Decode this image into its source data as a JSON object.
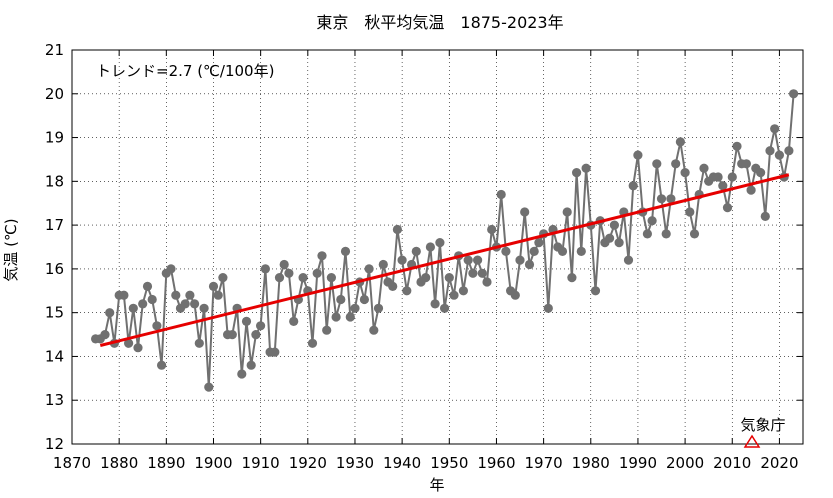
{
  "chart_data": {
    "type": "line",
    "title": "東京　秋平均気温　1875-2023年",
    "xlabel": "年",
    "ylabel": "気温 (℃)",
    "xlim": [
      1870,
      2025
    ],
    "ylim": [
      12,
      21
    ],
    "x_ticks": [
      1870,
      1880,
      1890,
      1900,
      1910,
      1920,
      1930,
      1940,
      1950,
      1960,
      1970,
      1980,
      1990,
      2000,
      2010,
      2020
    ],
    "y_ticks": [
      12,
      13,
      14,
      15,
      16,
      17,
      18,
      19,
      20,
      21
    ],
    "grid": true,
    "annotation": "トレンド=2.7 (℃/100年)",
    "source_label": "気象庁",
    "series": [
      {
        "color": "#707070",
        "x": [
          1875,
          1876,
          1877,
          1878,
          1879,
          1880,
          1881,
          1882,
          1883,
          1884,
          1885,
          1886,
          1887,
          1888,
          1889,
          1890,
          1891,
          1892,
          1893,
          1894,
          1895,
          1896,
          1897,
          1898,
          1899,
          1900,
          1901,
          1902,
          1903,
          1904,
          1905,
          1906,
          1907,
          1908,
          1909,
          1910,
          1911,
          1912,
          1913,
          1914,
          1915,
          1916,
          1917,
          1918,
          1919,
          1920,
          1921,
          1922,
          1923,
          1924,
          1925,
          1926,
          1927,
          1928,
          1929,
          1930,
          1931,
          1932,
          1933,
          1934,
          1935,
          1936,
          1937,
          1938,
          1939,
          1940,
          1941,
          1942,
          1943,
          1944,
          1945,
          1946,
          1947,
          1948,
          1949,
          1950,
          1951,
          1952,
          1953,
          1954,
          1955,
          1956,
          1957,
          1958,
          1959,
          1960,
          1961,
          1962,
          1963,
          1964,
          1965,
          1966,
          1967,
          1968,
          1969,
          1970,
          1971,
          1972,
          1973,
          1974,
          1975,
          1976,
          1977,
          1978,
          1979,
          1980,
          1981,
          1982,
          1983,
          1984,
          1985,
          1986,
          1987,
          1988,
          1989,
          1990,
          1991,
          1992,
          1993,
          1994,
          1995,
          1996,
          1997,
          1998,
          1999,
          2000,
          2001,
          2002,
          2003,
          2004,
          2005,
          2006,
          2007,
          2008,
          2009,
          2010,
          2011,
          2012,
          2013,
          2014,
          2015,
          2016,
          2017,
          2018,
          2019,
          2020,
          2021,
          2022,
          2023
        ],
        "values": [
          14.4,
          14.4,
          14.5,
          15.0,
          14.3,
          15.4,
          15.4,
          14.3,
          15.1,
          14.2,
          15.2,
          15.6,
          15.3,
          14.7,
          13.8,
          15.9,
          16.0,
          15.4,
          15.1,
          15.2,
          15.4,
          15.2,
          14.3,
          15.1,
          13.3,
          15.6,
          15.4,
          15.8,
          14.5,
          14.5,
          15.1,
          13.6,
          14.8,
          13.8,
          14.5,
          14.7,
          16.0,
          14.1,
          14.1,
          15.8,
          16.1,
          15.9,
          14.8,
          15.3,
          15.8,
          15.5,
          14.3,
          15.9,
          16.3,
          14.6,
          15.8,
          14.9,
          15.3,
          16.4,
          14.9,
          15.1,
          15.7,
          15.3,
          16.0,
          14.6,
          15.1,
          16.1,
          15.7,
          15.6,
          16.9,
          16.2,
          15.5,
          16.1,
          16.4,
          15.7,
          15.8,
          16.5,
          15.2,
          16.6,
          15.1,
          15.8,
          15.4,
          16.3,
          15.5,
          16.2,
          15.9,
          16.2,
          15.9,
          15.7,
          16.9,
          16.5,
          17.7,
          16.4,
          15.5,
          15.4,
          16.2,
          17.3,
          16.1,
          16.4,
          16.6,
          16.8,
          15.1,
          16.9,
          16.5,
          16.4,
          17.3,
          15.8,
          18.2,
          16.4,
          18.3,
          17.0,
          15.5,
          17.1,
          16.6,
          16.7,
          17.0,
          16.6,
          17.3,
          16.2,
          17.9,
          18.6,
          17.3,
          16.8,
          17.1,
          18.4,
          17.6,
          16.8,
          17.6,
          18.4,
          18.9,
          18.2,
          17.3,
          16.8,
          17.7,
          18.3,
          18.0,
          18.1,
          18.1,
          17.9,
          17.4,
          18.1,
          18.8,
          18.4,
          18.4,
          17.8,
          18.3,
          18.2,
          17.2,
          18.7,
          19.2,
          18.6,
          18.1,
          18.7,
          20.0
        ]
      },
      {
        "name": "トレンド",
        "color": "#e60000",
        "x": [
          1876,
          2022
        ],
        "values": [
          14.25,
          18.15
        ]
      }
    ]
  }
}
